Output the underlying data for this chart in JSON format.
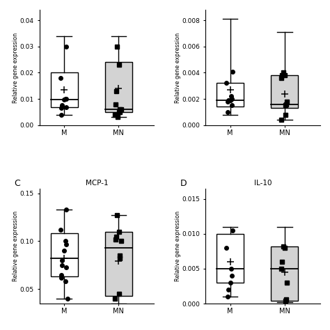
{
  "panels": {
    "A": {
      "label": "",
      "title": "",
      "xlabel_M": "M",
      "xlabel_MN": "MN",
      "ylabel": "Relative gene expression",
      "ylim": [
        0.0,
        0.044
      ],
      "yticks": [
        0.0,
        0.01,
        0.02,
        0.03,
        0.04
      ],
      "M": {
        "q1": 0.0068,
        "median": 0.0097,
        "q3": 0.02,
        "whisker_low": 0.004,
        "whisker_high": 0.034,
        "mean": 0.0135,
        "points": [
          0.03,
          0.018,
          0.01,
          0.01,
          0.0097,
          0.0075,
          0.0072,
          0.0068,
          0.0065,
          0.004
        ]
      },
      "MN": {
        "q1": 0.005,
        "median": 0.006,
        "q3": 0.024,
        "whisker_low": 0.003,
        "whisker_high": 0.034,
        "mean": 0.014,
        "points": [
          0.03,
          0.023,
          0.013,
          0.008,
          0.006,
          0.006,
          0.005,
          0.005,
          0.004,
          0.003
        ]
      },
      "color_M": "#ffffff",
      "color_MN": "#d3d3d3"
    },
    "B": {
      "label": "",
      "title": "",
      "xlabel_M": "M",
      "xlabel_MN": "MN",
      "ylabel": "Relative gene expression",
      "ylim": [
        0.0,
        0.0088
      ],
      "yticks": [
        0.0,
        0.002,
        0.004,
        0.006,
        0.008
      ],
      "M": {
        "q1": 0.0014,
        "median": 0.0019,
        "q3": 0.0032,
        "whisker_low": 0.0008,
        "whisker_high": 0.0081,
        "mean": 0.0027,
        "points": [
          0.0041,
          0.0032,
          0.0022,
          0.002,
          0.0019,
          0.0019,
          0.0018,
          0.0015,
          0.001
        ]
      },
      "MN": {
        "q1": 0.0013,
        "median": 0.0016,
        "q3": 0.0038,
        "whisker_low": 0.0004,
        "whisker_high": 0.0071,
        "mean": 0.0024,
        "points": [
          0.004,
          0.0038,
          0.0038,
          0.0036,
          0.0018,
          0.0016,
          0.0015,
          0.0008,
          0.0004
        ]
      },
      "color_M": "#ffffff",
      "color_MN": "#d3d3d3"
    },
    "C": {
      "label": "C",
      "title": "MCP-1",
      "xlabel_M": "M",
      "xlabel_MN": "MN",
      "ylabel": "Relative gene expression",
      "ylim": [
        0.035,
        0.155
      ],
      "yticks": [
        0.05,
        0.1,
        0.15
      ],
      "M": {
        "q1": 0.063,
        "median": 0.082,
        "q3": 0.108,
        "whisker_low": 0.04,
        "whisker_high": 0.133,
        "mean": 0.082,
        "points": [
          0.133,
          0.112,
          0.1,
          0.097,
          0.09,
          0.08,
          0.075,
          0.073,
          0.065,
          0.062,
          0.058,
          0.04
        ]
      },
      "MN": {
        "q1": 0.043,
        "median": 0.093,
        "q3": 0.11,
        "whisker_low": 0.035,
        "whisker_high": 0.127,
        "mean": 0.079,
        "points": [
          0.127,
          0.11,
          0.105,
          0.102,
          0.1,
          0.085,
          0.082,
          0.045,
          0.04
        ]
      },
      "color_M": "#ffffff",
      "color_MN": "#d3d3d3"
    },
    "D": {
      "label": "D",
      "title": "IL-10",
      "xlabel_M": "M",
      "xlabel_MN": "MN",
      "ylabel": "Relative gene expression",
      "ylim": [
        0.0,
        0.0165
      ],
      "yticks": [
        0.0,
        0.005,
        0.01,
        0.015
      ],
      "M": {
        "q1": 0.003,
        "median": 0.005,
        "q3": 0.01,
        "whisker_low": 0.001,
        "whisker_high": 0.011,
        "mean": 0.006,
        "points": [
          0.0105,
          0.008,
          0.005,
          0.004,
          0.003,
          0.002,
          0.001
        ]
      },
      "MN": {
        "q1": 0.0004,
        "median": 0.005,
        "q3": 0.0082,
        "whisker_low": 0.0002,
        "whisker_high": 0.011,
        "mean": 0.0045,
        "points": [
          0.0082,
          0.008,
          0.006,
          0.005,
          0.003,
          0.0006,
          0.0004
        ]
      },
      "color_M": "#ffffff",
      "color_MN": "#d3d3d3"
    }
  },
  "panel_order": [
    "A",
    "B",
    "C",
    "D"
  ],
  "box_width": 0.5,
  "marker_size": 4,
  "linewidth": 1.0,
  "mean_markersize": 7,
  "between_row_titles": {
    "left": "MCP-1",
    "right": "IL-10"
  }
}
